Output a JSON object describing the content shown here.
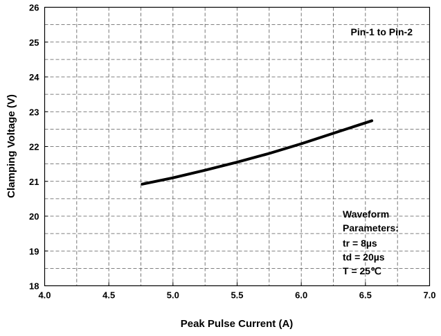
{
  "chart_data": {
    "type": "line",
    "title": "",
    "xlabel": "Peak Pulse Current (A)",
    "ylabel": "Clamping Voltage (V)",
    "xlim": [
      4.0,
      7.0
    ],
    "ylim": [
      18,
      26
    ],
    "x_ticks": [
      "4.0",
      "4.5",
      "5.0",
      "5.5",
      "6.0",
      "6.5",
      "7.0"
    ],
    "y_ticks": [
      "18",
      "19",
      "20",
      "21",
      "22",
      "23",
      "24",
      "25",
      "26"
    ],
    "grid": true,
    "grid_style": "dashed",
    "series": [
      {
        "x": [
          4.76,
          5.0,
          5.25,
          5.5,
          5.75,
          6.0,
          6.25,
          6.55
        ],
        "y": [
          20.92,
          21.1,
          21.32,
          21.55,
          21.8,
          22.08,
          22.38,
          22.74
        ],
        "color": "#000000"
      }
    ],
    "annotations": {
      "corner_label": "Pin-1 to Pin-2",
      "waveform": [
        "Waveform",
        "Parameters:",
        "tr = 8µs",
        "td = 20µs",
        "T = 25℃"
      ]
    }
  }
}
